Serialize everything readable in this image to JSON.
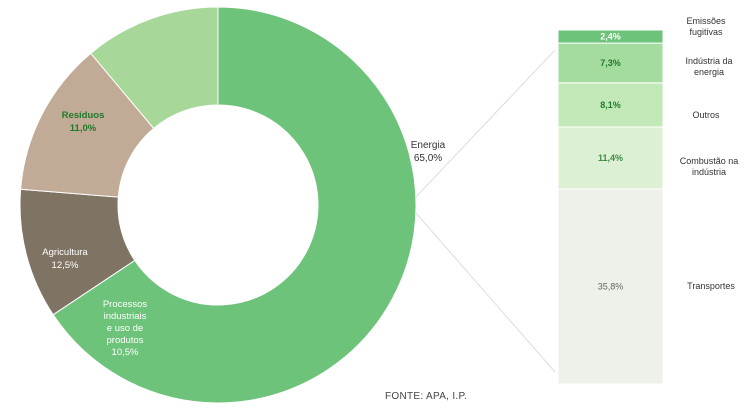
{
  "chart_data": [
    {
      "type": "pie",
      "donut": true,
      "slices": [
        {
          "label": "Energia",
          "value_label": "65,0%",
          "value": 65.0,
          "color": "#6ec37a"
        },
        {
          "label": "Processos industriais e uso de produtos",
          "value_label": "10,5%",
          "value": 10.5,
          "color": "#7f7464"
        },
        {
          "label": "Agricultura",
          "value_label": "12,5%",
          "value": 12.5,
          "color": "#c1ab96"
        },
        {
          "label": "Resíduos",
          "value_label": "11,0%",
          "value": 11.0,
          "color": "#a7d89a"
        }
      ]
    },
    {
      "type": "bar",
      "stacked": true,
      "parent": "Energia",
      "categories": [
        "Transportes",
        "Combustão na indústria",
        "Outros",
        "Indústria da energia",
        "Emissões fugitivas"
      ],
      "values": [
        35.8,
        11.4,
        8.1,
        7.3,
        2.4
      ],
      "value_labels": [
        "35,8%",
        "11,4%",
        "8,1%",
        "7,3%",
        "2,4%"
      ],
      "colors": [
        "#eef0ea",
        "#dcf0d3",
        "#c2e8b8",
        "#a4dca0",
        "#6ec37a"
      ]
    }
  ],
  "labels": {
    "energia": "Energia",
    "energia_value": "65,0%",
    "residuos": "Resíduos",
    "residuos_value": "11,0%",
    "agricultura": "Agricultura",
    "agricultura_value": "12,5%",
    "processos_lines": [
      "Processos",
      "industriais",
      "e uso de",
      "produtos",
      "10,5%"
    ],
    "emissoes_lines": [
      "Emissões",
      "fugitivas"
    ],
    "industria_lines": [
      "Indústria da",
      "energia"
    ],
    "outros": "Outros",
    "combustao_lines": [
      "Combustão na",
      "indústria"
    ],
    "transportes": "Transportes"
  },
  "source": "FONTE: APA, I.P."
}
